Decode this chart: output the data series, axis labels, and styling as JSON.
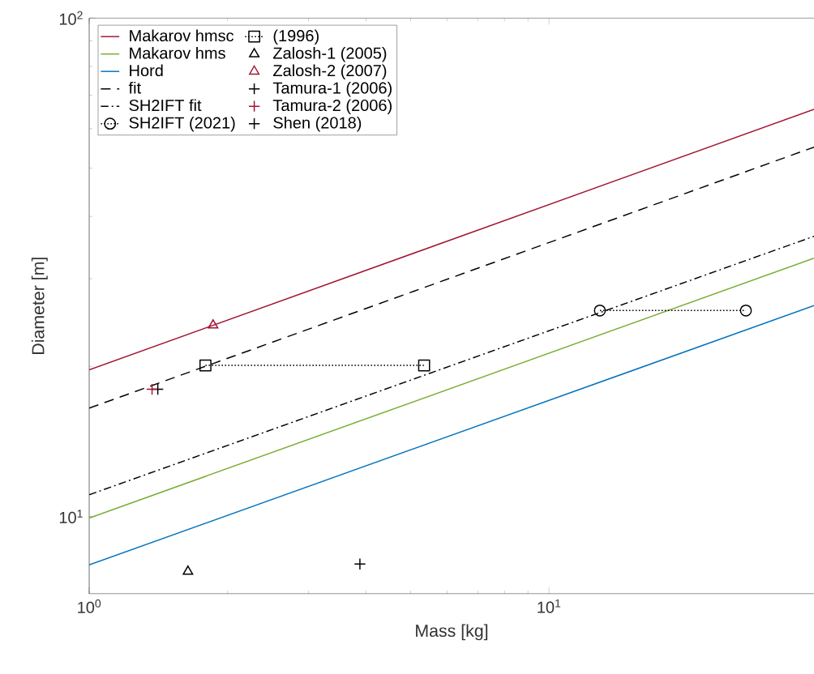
{
  "chart_data": {
    "type": "line",
    "xlabel": "Mass [kg]",
    "ylabel": "Diameter [m]",
    "log": "xy",
    "xlim": [
      1,
      37.7
    ],
    "ylim": [
      7,
      100
    ],
    "xticks": [
      {
        "value": 1,
        "label": "10$^{0}$"
      },
      {
        "value": 10,
        "label": "10$^{1}$"
      }
    ],
    "yticks": [
      {
        "value": 10,
        "label": "10$^{1}$"
      },
      {
        "value": 100,
        "label": "10$^{2}$"
      }
    ],
    "legend": "top left",
    "grid": false,
    "series": [
      {
        "name": "Makarov hmsc",
        "color": "#a2142f",
        "line_style": "solid",
        "marker": "none",
        "x": [
          1,
          37.7
        ],
        "values": [
          19.7,
          65.6
        ]
      },
      {
        "name": "Makarov hms",
        "color": "#77ac30",
        "line_style": "solid",
        "marker": "none",
        "x": [
          1,
          37.7
        ],
        "values": [
          9.93,
          33.0
        ]
      },
      {
        "name": "Hord",
        "color": "#0072bd",
        "line_style": "solid",
        "marker": "none",
        "x": [
          1,
          37.7
        ],
        "values": [
          8.0,
          26.5
        ]
      },
      {
        "name": "fit",
        "color": "#000000",
        "line_style": "dashed",
        "marker": "none",
        "x": [
          1,
          37.7
        ],
        "values": [
          16.5,
          55.1
        ]
      },
      {
        "name": "SH2IFT fit",
        "color": "#000000",
        "line_style": "dashdot",
        "marker": "none",
        "x": [
          1,
          37.7
        ],
        "values": [
          11.06,
          36.5
        ]
      },
      {
        "name": "SH2IFT (2021)",
        "color": "#000000",
        "line_style": "dotted",
        "marker": "circle",
        "x": [
          12.9,
          26.8
        ],
        "values": [
          25.9,
          25.9
        ]
      },
      {
        "name": "(1996)",
        "color": "#000000",
        "line_style": "dotted",
        "marker": "square",
        "x": [
          1.79,
          5.35
        ],
        "values": [
          20.1,
          20.1
        ]
      },
      {
        "name": "Zalosh-1 (2005)",
        "type": "scatter",
        "color": "#000000",
        "marker": "triangle",
        "x": [
          1.64
        ],
        "values": [
          7.76
        ]
      },
      {
        "name": "Zalosh-2 (2007)",
        "type": "scatter",
        "color": "#a2142f",
        "marker": "triangle",
        "x": [
          1.86
        ],
        "values": [
          24.2
        ]
      },
      {
        "name": "Tamura-1 (2006)",
        "type": "scatter",
        "color": "#000000",
        "marker": "cross",
        "x": [
          1.41
        ],
        "values": [
          18.0
        ]
      },
      {
        "name": "Tamura-2 (2006)",
        "type": "scatter",
        "color": "#a2142f",
        "marker": "cross",
        "x": [
          1.37
        ],
        "values": [
          18.0
        ]
      },
      {
        "name": "Shen (2018)",
        "type": "scatter",
        "color": "#000000",
        "marker": "cross",
        "x": [
          3.88
        ],
        "values": [
          8.03
        ]
      }
    ]
  }
}
